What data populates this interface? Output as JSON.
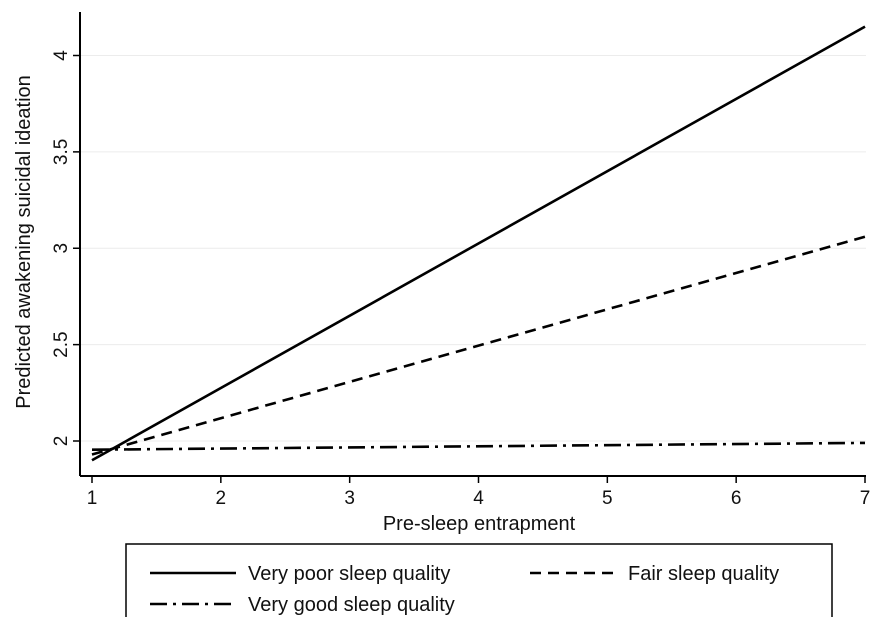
{
  "chart_data": {
    "type": "line",
    "title": "",
    "xlabel": "Pre-sleep entrapment",
    "ylabel": "Predicted awakening suicidal ideation",
    "xlim": [
      1,
      7
    ],
    "ylim": [
      1.93,
      4.2
    ],
    "x_ticks": [
      "1",
      "2",
      "3",
      "4",
      "5",
      "6",
      "7"
    ],
    "y_ticks": [
      "2",
      "2.5",
      "3",
      "3.5",
      "4"
    ],
    "grid": "horizontal",
    "legend_position": "bottom",
    "series": [
      {
        "name": "Very poor sleep quality",
        "style": "solid",
        "x": [
          1,
          7
        ],
        "y": [
          1.9,
          4.15
        ]
      },
      {
        "name": "Fair sleep quality",
        "style": "dashed",
        "x": [
          1,
          7
        ],
        "y": [
          1.93,
          3.06
        ]
      },
      {
        "name": "Very good sleep quality",
        "style": "dash-dot",
        "x": [
          1,
          7
        ],
        "y": [
          1.955,
          1.99
        ]
      }
    ]
  }
}
